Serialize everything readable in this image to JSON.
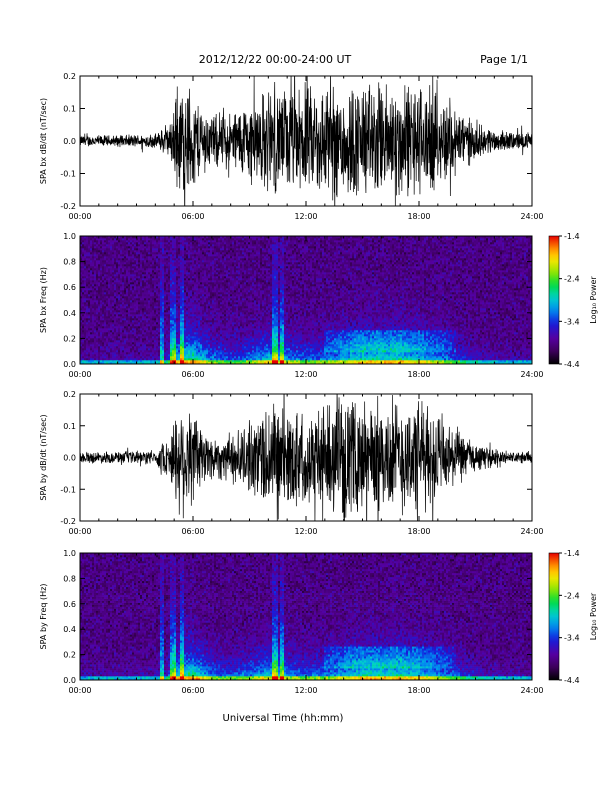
{
  "header": {
    "title": "2012/12/22  00:00-24:00 UT",
    "page": "Page 1/1"
  },
  "x_axis_label": "Universal Time (hh:mm)",
  "chart_data": [
    {
      "type": "line",
      "ylabel": "SPA bx dB/dt (nT/sec)",
      "xlim": [
        0,
        24
      ],
      "ylim": [
        -0.2,
        0.2
      ],
      "xticks": [
        "00:00",
        "06:00",
        "12:00",
        "18:00",
        "24:00"
      ],
      "yticks": [
        "0.2",
        "0.1",
        "0.0",
        "-0.1",
        "-0.2"
      ],
      "envelope": {
        "x_hours": [
          0,
          2,
          4,
          4.8,
          5.2,
          5.5,
          5.8,
          6.0,
          6.5,
          7,
          8,
          9,
          10,
          11,
          12,
          13,
          14,
          15,
          16,
          17,
          18,
          19,
          20,
          21,
          22,
          23,
          24
        ],
        "amplitude": [
          0.02,
          0.02,
          0.025,
          0.06,
          0.2,
          0.18,
          0.2,
          0.16,
          0.12,
          0.09,
          0.1,
          0.14,
          0.18,
          0.18,
          0.18,
          0.2,
          0.2,
          0.2,
          0.2,
          0.2,
          0.2,
          0.16,
          0.12,
          0.06,
          0.04,
          0.03,
          0.03
        ]
      }
    },
    {
      "type": "heatmap",
      "ylabel": "SPA bx Freq (Hz)",
      "xlim": [
        0,
        24
      ],
      "ylim": [
        0,
        1
      ],
      "xticks": [
        "00:00",
        "06:00",
        "12:00",
        "18:00",
        "24:00"
      ],
      "yticks": [
        "1.0",
        "0.8",
        "0.6",
        "0.4",
        "0.2",
        "0.0"
      ],
      "colorbar": {
        "label": "Log₁₀ Power",
        "range": [
          -4.4,
          -1.4
        ],
        "ticks": [
          "-1.4",
          "-2.4",
          "-3.4",
          "-4.4"
        ]
      }
    },
    {
      "type": "line",
      "ylabel": "SPA by dB/dt (nT/sec)",
      "xlim": [
        0,
        24
      ],
      "ylim": [
        -0.2,
        0.2
      ],
      "xticks": [
        "00:00",
        "06:00",
        "12:00",
        "18:00",
        "24:00"
      ],
      "yticks": [
        "0.2",
        "0.1",
        "0.0",
        "-0.1",
        "-0.2"
      ],
      "envelope": {
        "x_hours": [
          0,
          2,
          4,
          4.8,
          5.2,
          5.5,
          5.8,
          6.0,
          6.5,
          7,
          8,
          9,
          10,
          11,
          12,
          13,
          14,
          15,
          16,
          17,
          18,
          19,
          20,
          21,
          22,
          23,
          24
        ],
        "amplitude": [
          0.02,
          0.02,
          0.025,
          0.08,
          0.2,
          0.2,
          0.2,
          0.16,
          0.12,
          0.08,
          0.08,
          0.12,
          0.2,
          0.18,
          0.16,
          0.18,
          0.2,
          0.2,
          0.2,
          0.2,
          0.2,
          0.16,
          0.1,
          0.05,
          0.03,
          0.02,
          0.02
        ]
      }
    },
    {
      "type": "heatmap",
      "ylabel": "SPA by Freq (Hz)",
      "xlim": [
        0,
        24
      ],
      "ylim": [
        0,
        1
      ],
      "xticks": [
        "00:00",
        "06:00",
        "12:00",
        "18:00",
        "24:00"
      ],
      "yticks": [
        "1.0",
        "0.8",
        "0.6",
        "0.4",
        "0.2",
        "0.0"
      ],
      "colorbar": {
        "label": "Log₁₀ Power",
        "range": [
          -4.4,
          -1.4
        ],
        "ticks": [
          "-1.4",
          "-2.4",
          "-3.4",
          "-4.4"
        ]
      }
    }
  ]
}
